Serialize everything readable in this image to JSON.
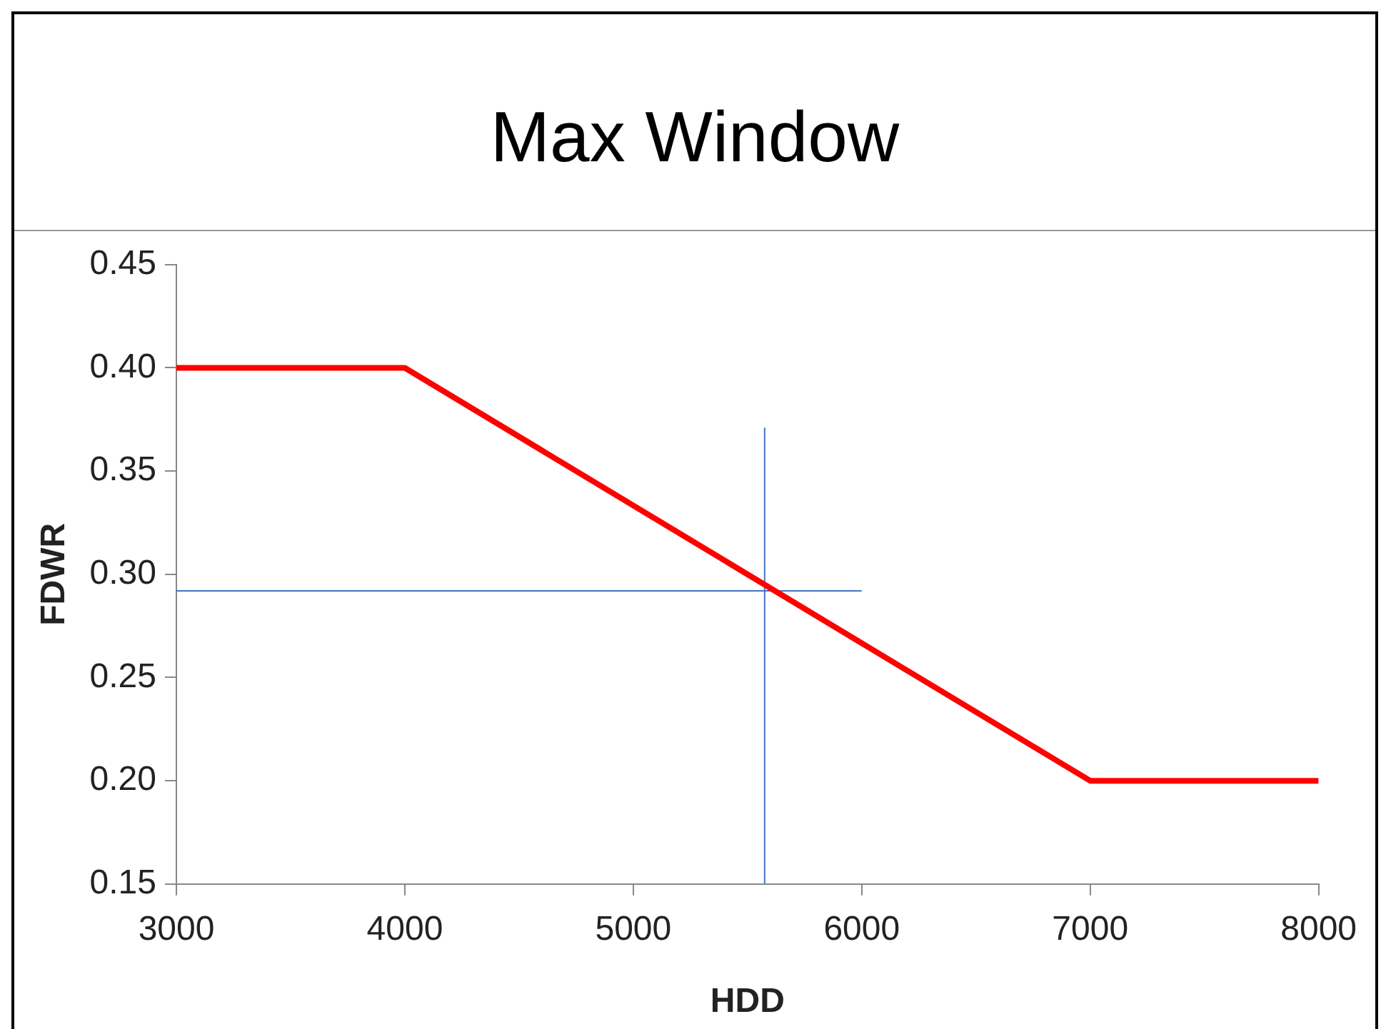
{
  "chart_data": {
    "type": "line",
    "title": "Max Window",
    "xlabel": "HDD",
    "ylabel": "FDWR",
    "series": [
      {
        "color": "#ff0000",
        "x": [
          3000,
          4000,
          7000,
          8000
        ],
        "values": [
          0.4,
          0.4,
          0.2,
          0.2
        ]
      },
      {
        "color": "#4472c4",
        "x": [
          3000,
          6000
        ],
        "values": [
          0.292,
          0.292
        ]
      },
      {
        "color": "#4472c4",
        "x": [
          5575,
          5575
        ],
        "values": [
          0.15,
          0.371
        ]
      }
    ],
    "xlim": [
      3000,
      8000
    ],
    "xticks": [
      3000,
      4000,
      5000,
      6000,
      7000,
      8000
    ],
    "ylim": [
      0.15,
      0.45
    ],
    "yticks": [
      {
        "value": 0.15,
        "label": "0.15"
      },
      {
        "value": 0.2,
        "label": "0.20"
      },
      {
        "value": 0.25,
        "label": "0.25"
      },
      {
        "value": 0.3,
        "label": "0.30"
      },
      {
        "value": 0.35,
        "label": "0.35"
      },
      {
        "value": 0.4,
        "label": "0.40"
      },
      {
        "value": 0.45,
        "label": "0.45"
      }
    ],
    "grid": false,
    "legend": false,
    "marker": "none",
    "line_style": "solid"
  }
}
